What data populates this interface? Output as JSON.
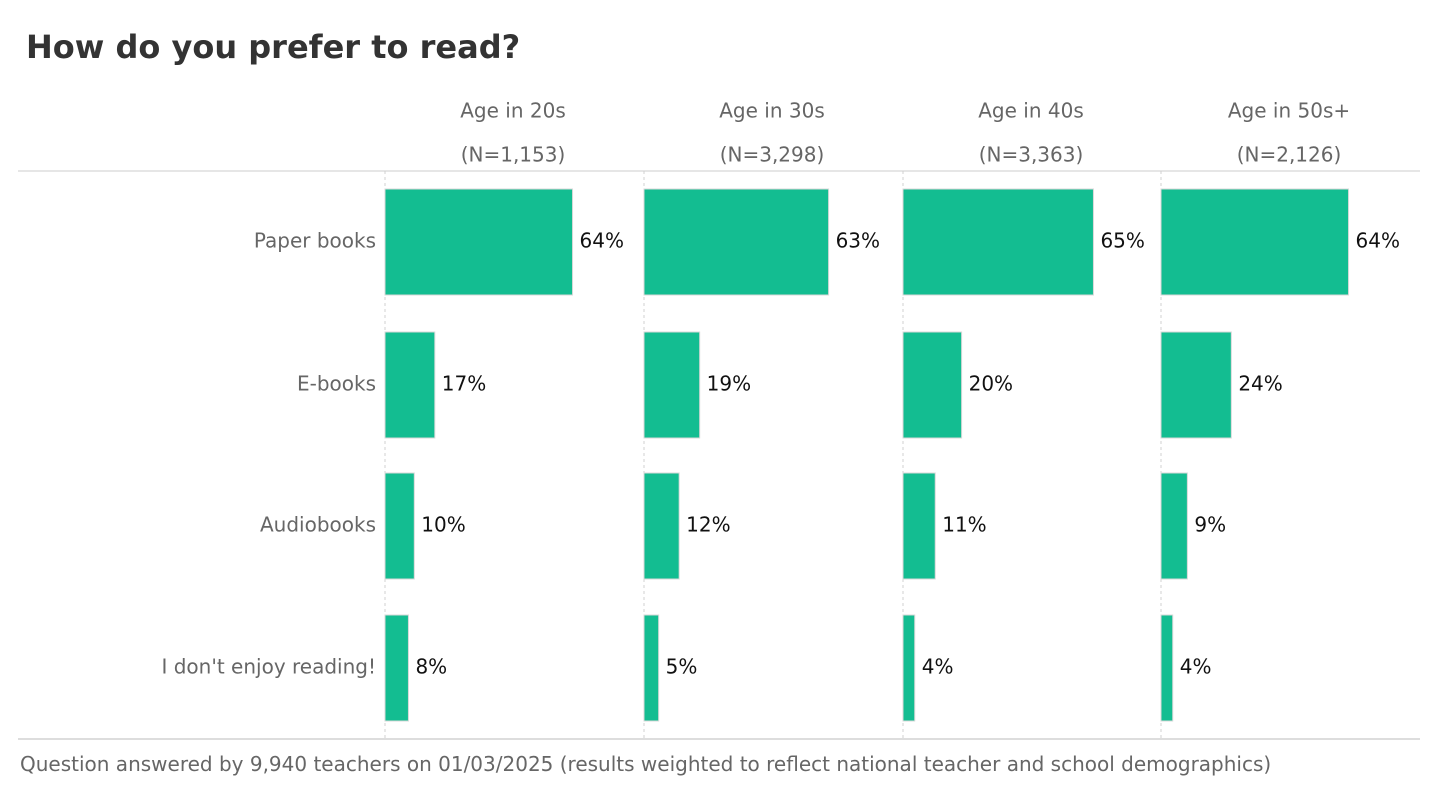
{
  "chart_data": {
    "type": "bar",
    "title": "How do you prefer to read?",
    "categories": [
      "Paper books",
      "E-books",
      "Audiobooks",
      "I don't enjoy reading!"
    ],
    "series": [
      {
        "name": "Age in 20s",
        "n_label": "(N=1,153)",
        "values": [
          64,
          17,
          10,
          8
        ],
        "labels": [
          "64%",
          "17%",
          "10%",
          "8%"
        ]
      },
      {
        "name": "Age in 30s",
        "n_label": "(N=3,298)",
        "values": [
          63,
          19,
          12,
          5
        ],
        "labels": [
          "63%",
          "19%",
          "12%",
          "5%"
        ]
      },
      {
        "name": "Age in 40s",
        "n_label": "(N=3,363)",
        "values": [
          65,
          20,
          11,
          4
        ],
        "labels": [
          "65%",
          "20%",
          "11%",
          "4%"
        ]
      },
      {
        "name": "Age in 50s+",
        "n_label": "(N=2,126)",
        "values": [
          64,
          24,
          9,
          4
        ],
        "labels": [
          "64%",
          "24%",
          "9%",
          "4%"
        ]
      }
    ],
    "xlim": [
      0,
      100
    ],
    "orientation": "horizontal",
    "layout": "small-multiples",
    "bar_color": "#13bd91",
    "grid": false
  },
  "footnote": "Question answered by 9,940 teachers on 01/03/2025 (results weighted to reflect national teacher and school demographics)"
}
